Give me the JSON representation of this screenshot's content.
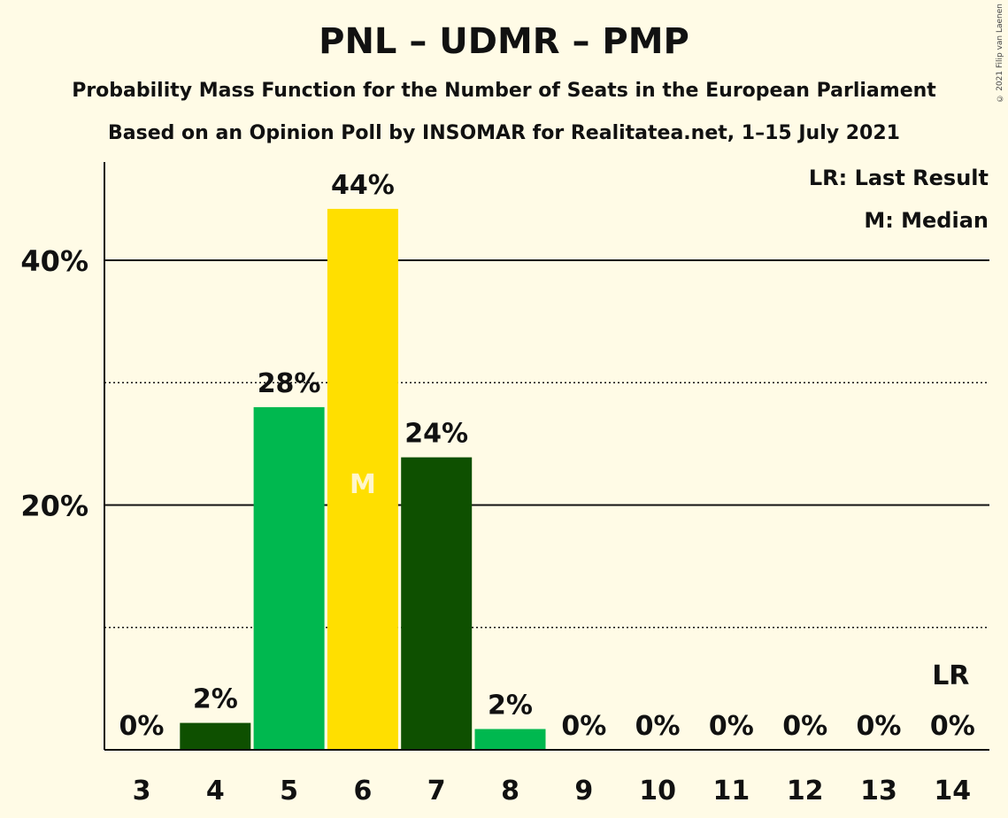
{
  "title": "PNL – UDMR – PMP",
  "subtitle1": "Probability Mass Function for the Number of Seats in the European Parliament",
  "subtitle2": "Based on an Opinion Poll by INSOMAR for Realitatea.net, 1–15 July 2021",
  "copyright": "© 2021 Filip van Laenen",
  "legend": {
    "last_result": "LR: Last Result",
    "median": "M: Median"
  },
  "markers": {
    "median_symbol": "M",
    "median_seats": 6,
    "last_result_symbol": "LR",
    "last_result_seats": 14
  },
  "colors": {
    "background": "#fffbe6",
    "dark_green": "#0e5000",
    "light_green": "#00b84f",
    "median_yellow": "#ffdf00"
  },
  "chart_data": {
    "type": "bar",
    "categories": [
      "3",
      "4",
      "5",
      "6",
      "7",
      "8",
      "9",
      "10",
      "11",
      "12",
      "13",
      "14"
    ],
    "values": [
      0,
      2.2,
      28,
      44.2,
      23.9,
      1.7,
      0,
      0,
      0,
      0,
      0,
      0
    ],
    "data_labels": [
      "0%",
      "2%",
      "28%",
      "44%",
      "24%",
      "2%",
      "0%",
      "0%",
      "0%",
      "0%",
      "0%",
      "0%"
    ],
    "bar_colors": [
      "#0e5000",
      "#0e5000",
      "#00b84f",
      "#ffdf00",
      "#0e5000",
      "#00b84f",
      "#0e5000",
      "#0e5000",
      "#0e5000",
      "#0e5000",
      "#0e5000",
      "#0e5000"
    ],
    "ylim": [
      0,
      48
    ],
    "y_ticks": [
      20,
      40
    ],
    "y_tick_labels": [
      "20%",
      "40%"
    ],
    "y_minor_ticks": [
      10,
      30
    ],
    "grid": true,
    "legend_position": "top-right"
  }
}
